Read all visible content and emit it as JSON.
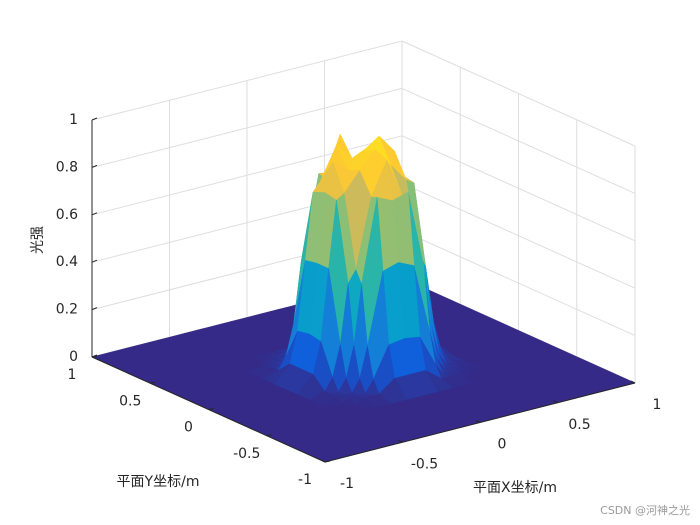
{
  "chart_data": {
    "type": "surface",
    "xlabel": "平面X坐标/m",
    "ylabel": "平面Y坐标/m",
    "zlabel": "光强",
    "x": [
      -1,
      -0.5,
      -0.4,
      -0.35,
      -0.3,
      -0.25,
      -0.2,
      -0.1,
      0,
      0.1,
      0.2,
      0.25,
      0.3,
      0.35,
      0.4,
      0.5,
      1
    ],
    "y": [
      -1,
      -0.5,
      -0.4,
      -0.35,
      -0.3,
      -0.25,
      -0.2,
      -0.1,
      0,
      0.1,
      0.2,
      0.25,
      0.3,
      0.35,
      0.4,
      0.5,
      1
    ],
    "z": [
      [
        0,
        0,
        0,
        0,
        0,
        0,
        0,
        0,
        0,
        0,
        0,
        0,
        0,
        0,
        0,
        0,
        0
      ],
      [
        0,
        0,
        0,
        0,
        0,
        0,
        0,
        0,
        0,
        0,
        0,
        0,
        0,
        0,
        0,
        0,
        0
      ],
      [
        0,
        0,
        0,
        0,
        0.02,
        0.02,
        0.02,
        0.07,
        0.07,
        0.07,
        0.02,
        0.02,
        0.02,
        0,
        0,
        0,
        0
      ],
      [
        0,
        0,
        0,
        0.02,
        0.02,
        0.02,
        0.07,
        0.2,
        0.21,
        0.2,
        0.07,
        0.02,
        0.02,
        0.02,
        0,
        0,
        0
      ],
      [
        0,
        0,
        0.02,
        0.02,
        0.02,
        0.07,
        0.2,
        0.5,
        0.52,
        0.49,
        0.2,
        0.07,
        0.02,
        0.02,
        0.02,
        0,
        0
      ],
      [
        0,
        0,
        0.02,
        0.02,
        0.07,
        0.2,
        0.45,
        0.8,
        0.77,
        0.79,
        0.46,
        0.2,
        0.07,
        0.02,
        0.02,
        0,
        0
      ],
      [
        0,
        0,
        0.02,
        0.07,
        0.2,
        0.45,
        0.5,
        0.79,
        0.93,
        0.76,
        0.51,
        0.44,
        0.2,
        0.07,
        0.02,
        0,
        0
      ],
      [
        0,
        0,
        0.07,
        0.2,
        0.5,
        0.78,
        0.8,
        0.88,
        0.95,
        0.87,
        0.79,
        0.77,
        0.5,
        0.2,
        0.07,
        0,
        0
      ],
      [
        0,
        0,
        0.07,
        0.21,
        0.5,
        0.79,
        0.91,
        0.86,
        0.92,
        0.97,
        0.89,
        0.78,
        0.51,
        0.2,
        0.07,
        0,
        0
      ],
      [
        0,
        0,
        0.07,
        0.2,
        0.49,
        0.77,
        0.81,
        0.94,
        0.87,
        0.9,
        0.8,
        0.78,
        0.5,
        0.2,
        0.07,
        0,
        0
      ],
      [
        0,
        0,
        0.02,
        0.07,
        0.2,
        0.46,
        0.5,
        0.78,
        0.95,
        0.8,
        0.5,
        0.45,
        0.2,
        0.07,
        0.02,
        0,
        0
      ],
      [
        0,
        0,
        0.02,
        0.02,
        0.07,
        0.2,
        0.45,
        0.79,
        0.78,
        0.81,
        0.44,
        0.2,
        0.07,
        0.02,
        0.02,
        0,
        0
      ],
      [
        0,
        0,
        0.02,
        0.02,
        0.02,
        0.07,
        0.2,
        0.49,
        0.5,
        0.51,
        0.2,
        0.07,
        0.02,
        0.02,
        0.02,
        0,
        0
      ],
      [
        0,
        0,
        0,
        0.02,
        0.02,
        0.02,
        0.07,
        0.2,
        0.2,
        0.2,
        0.07,
        0.02,
        0.02,
        0.02,
        0,
        0,
        0
      ],
      [
        0,
        0,
        0,
        0,
        0.02,
        0.02,
        0.02,
        0.07,
        0.07,
        0.07,
        0.02,
        0.02,
        0.02,
        0,
        0,
        0,
        0
      ],
      [
        0,
        0,
        0,
        0,
        0,
        0,
        0,
        0,
        0,
        0,
        0,
        0,
        0,
        0,
        0,
        0,
        0
      ],
      [
        0,
        0,
        0,
        0,
        0,
        0,
        0,
        0,
        0,
        0,
        0,
        0,
        0,
        0,
        0,
        0,
        0
      ]
    ],
    "xlim": [
      -1,
      1
    ],
    "ylim": [
      -1,
      1
    ],
    "zlim": [
      0,
      1
    ],
    "xticks": [
      -1,
      -0.5,
      0,
      0.5,
      1
    ],
    "yticks": [
      -1,
      -0.5,
      0,
      0.5,
      1
    ],
    "zticks": [
      0,
      0.2,
      0.4,
      0.6,
      0.8,
      1
    ],
    "grid": true,
    "colormap": [
      "#352a87",
      "#0f5cdd",
      "#1481d6",
      "#06a4ca",
      "#2eb7a4",
      "#87bf77",
      "#d1bb59",
      "#fec832",
      "#f9fb0e"
    ]
  },
  "watermark": "CSDN @河神之光"
}
